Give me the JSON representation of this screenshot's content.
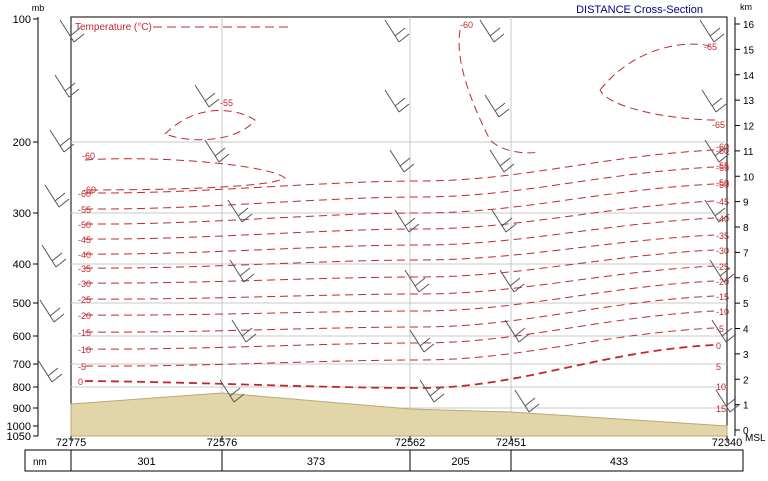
{
  "colors": {
    "isotherm": "#c0282d",
    "terrain": "#e2d5a8",
    "wind": "#555555",
    "grid": "#c8c8c8",
    "label": "#000080"
  },
  "chart_data": {
    "type": "cross-section",
    "title": "DISTANCE Cross-Section",
    "field_label": "Temperature (°C)",
    "left_axis": {
      "unit": "mb",
      "ticks": [
        "100",
        "200",
        "300",
        "400",
        "500",
        "600",
        "700",
        "800",
        "900",
        "1000",
        "1050"
      ]
    },
    "right_axis": {
      "unit": "km",
      "ticks": [
        "16",
        "15",
        "14",
        "13",
        "12",
        "11",
        "10",
        "9",
        "8",
        "7",
        "6",
        "5",
        "4",
        "3",
        "2",
        "1",
        "0"
      ],
      "bottom_label": "MSL"
    },
    "stations": [
      "72775",
      "72576",
      "72562",
      "72451",
      "72340"
    ],
    "distance_unit": "nm",
    "distances": [
      "301",
      "373",
      "205",
      "433"
    ],
    "isotherms": [
      {
        "temp": 0,
        "labels": [
          "0",
          "0"
        ]
      },
      {
        "temp": -5,
        "labels": [
          "-5",
          "-5"
        ]
      },
      {
        "temp": -10,
        "labels": [
          "-10",
          "-10"
        ]
      },
      {
        "temp": -15,
        "labels": [
          "-15",
          "-15"
        ]
      },
      {
        "temp": -20,
        "labels": [
          "-20",
          "-20"
        ]
      },
      {
        "temp": -25,
        "labels": [
          "-25",
          "-25"
        ]
      },
      {
        "temp": -30,
        "labels": [
          "-30",
          "-30"
        ]
      },
      {
        "temp": -35,
        "labels": [
          "-35",
          "-35"
        ]
      },
      {
        "temp": -40,
        "labels": [
          "-40",
          "-40"
        ]
      },
      {
        "temp": -45,
        "labels": [
          "-45",
          "-45"
        ]
      },
      {
        "temp": -50,
        "labels": [
          "-50",
          "-50"
        ]
      },
      {
        "temp": -55,
        "labels": [
          "-55",
          "-55"
        ]
      },
      {
        "temp": -60,
        "labels": [
          "-60",
          "-60"
        ]
      }
    ],
    "extra_labels": [
      "-55",
      "-60",
      "-65",
      "-65",
      "-60",
      "-60",
      "-50",
      "-55",
      "-60",
      "5",
      "10",
      "15"
    ]
  }
}
